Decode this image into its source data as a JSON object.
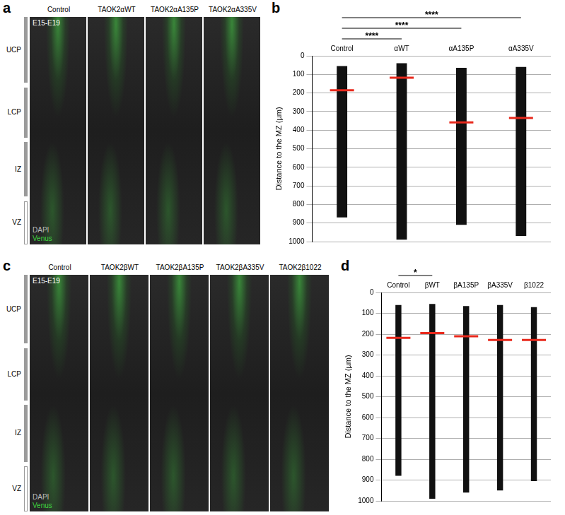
{
  "image_panels": [
    {
      "panel": "a",
      "stage": "E15-E19",
      "columns": [
        "Control",
        "TAOK2αWT",
        "TAOK2αA135P",
        "TAOK2αA335V"
      ],
      "zones": [
        "UCP",
        "LCP",
        "IZ",
        "VZ"
      ],
      "stains": [
        "DAPI",
        "Venus"
      ]
    },
    {
      "panel": "c",
      "stage": "E15-E19",
      "columns": [
        "Control",
        "TAOK2βWT",
        "TAOK2βA135P",
        "TAOK2βA335V",
        "TAOK2β1022"
      ],
      "zones": [
        "UCP",
        "LCP",
        "IZ",
        "VZ"
      ],
      "stains": [
        "DAPI",
        "Venus"
      ]
    }
  ],
  "chart_data": [
    {
      "panel": "b",
      "type": "bar",
      "categories": [
        "Control",
        "αWT",
        "αA135P",
        "αA335V"
      ],
      "range": [
        [
          55,
          870
        ],
        [
          40,
          990
        ],
        [
          65,
          910
        ],
        [
          60,
          970
        ]
      ],
      "values": [
        185,
        118,
        358,
        335
      ],
      "color": "#e8291c",
      "y_label": "Distance to the MZ (µm)",
      "ylim": [
        1000,
        0
      ],
      "yticks": [
        0,
        100,
        200,
        300,
        400,
        500,
        600,
        700,
        800,
        900,
        1000
      ],
      "grid": true,
      "annotations": [
        {
          "from": "Control",
          "to": "αWT",
          "text": "****"
        },
        {
          "from": "Control",
          "to": "αA135P",
          "text": "****"
        },
        {
          "from": "Control",
          "to": "αA335V",
          "text": "****"
        }
      ]
    },
    {
      "panel": "d",
      "type": "bar",
      "categories": [
        "Control",
        "βWT",
        "βA135P",
        "βA335V",
        "β1022"
      ],
      "range": [
        [
          60,
          880
        ],
        [
          55,
          990
        ],
        [
          65,
          960
        ],
        [
          60,
          950
        ],
        [
          70,
          905
        ]
      ],
      "values": [
        218,
        195,
        210,
        228,
        228
      ],
      "color": "#e8291c",
      "y_label": "Distance to the MZ (µm)",
      "ylim": [
        1000,
        0
      ],
      "yticks": [
        0,
        100,
        200,
        300,
        400,
        500,
        600,
        700,
        800,
        900,
        1000
      ],
      "grid": true,
      "annotations": [
        {
          "from": "Control",
          "to": "βWT",
          "text": "*"
        }
      ]
    }
  ]
}
